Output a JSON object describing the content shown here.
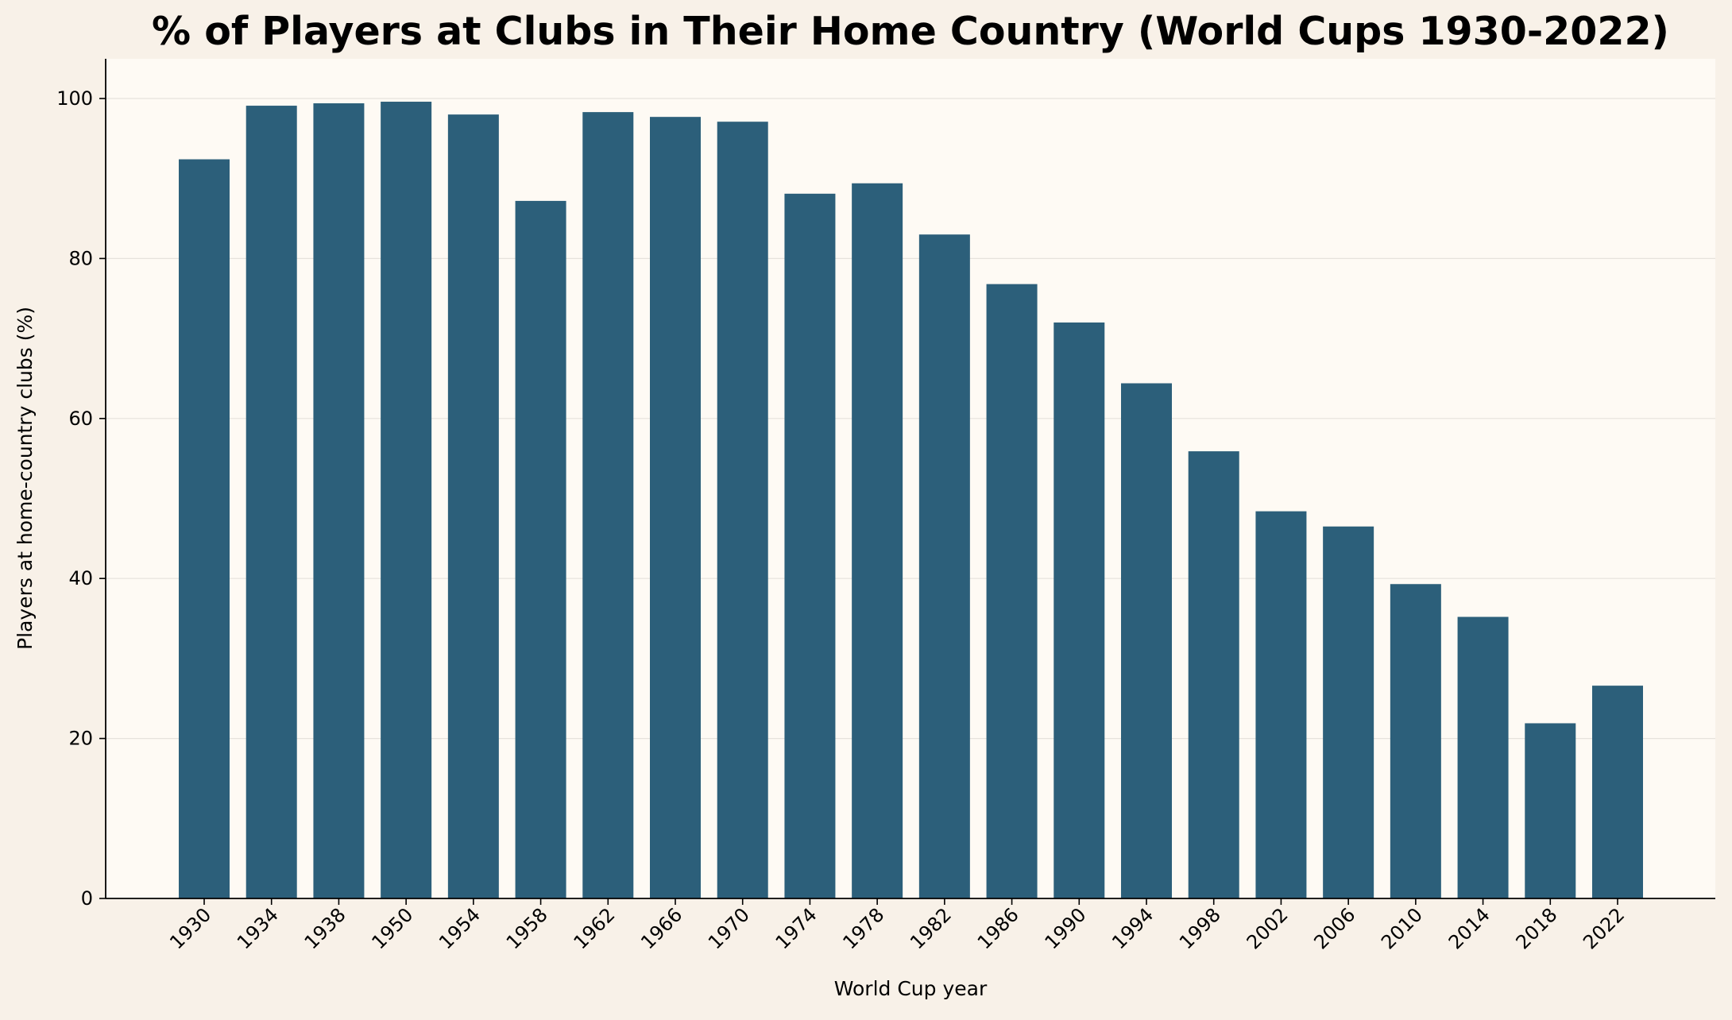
{
  "chart_data": {
    "type": "bar",
    "title": "% of Players at Clubs in Their Home Country (World Cups 1930-2022)",
    "xlabel": "World Cup year",
    "ylabel": "Players at home-country clubs (%)",
    "categories": [
      "1930",
      "1934",
      "1938",
      "1950",
      "1954",
      "1958",
      "1962",
      "1966",
      "1970",
      "1974",
      "1978",
      "1982",
      "1986",
      "1990",
      "1994",
      "1998",
      "2002",
      "2006",
      "2010",
      "2014",
      "2018",
      "2022"
    ],
    "values": [
      92.4,
      99.1,
      99.4,
      99.6,
      98.0,
      87.2,
      98.3,
      97.7,
      97.1,
      88.1,
      89.4,
      83.0,
      76.8,
      72.0,
      64.4,
      55.9,
      48.4,
      46.5,
      39.3,
      35.2,
      21.9,
      26.6
    ],
    "yticks": [
      0,
      20,
      40,
      60,
      80,
      100
    ],
    "ylim": [
      0,
      105
    ],
    "grid": "horizontal",
    "colors": {
      "bar": "#2c5f7a",
      "plot_background": "#fefaf4",
      "page_background": "#f8f1e8",
      "grid": "#e6e2dc"
    }
  }
}
